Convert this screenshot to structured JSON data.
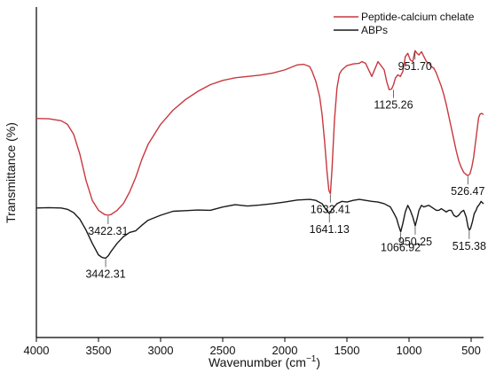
{
  "chart_data": {
    "type": "line",
    "title": "",
    "xlabel": "Wavenumber (cm",
    "xlabel_sup": "−1",
    "xlabel_close": ")",
    "ylabel": "Transmittance (%)",
    "xlim": [
      4000,
      400
    ],
    "xreversed": true,
    "ylim": [
      0,
      100
    ],
    "y_ticks_shown": false,
    "x_ticks": [
      4000,
      3500,
      3000,
      2500,
      2000,
      1500,
      1000,
      500
    ],
    "x_tick_labels": [
      "4000",
      "3500",
      "3000",
      "2500",
      "2000",
      "1500",
      "1000",
      "500"
    ],
    "grid": false,
    "legend_position": "top-right",
    "series": [
      {
        "name": "Peptide-calcium chelate",
        "color": "#c8383f",
        "x": [
          4000,
          3900,
          3800,
          3750,
          3700,
          3650,
          3600,
          3550,
          3500,
          3450,
          3422,
          3400,
          3350,
          3300,
          3250,
          3200,
          3150,
          3100,
          3000,
          2900,
          2800,
          2700,
          2600,
          2500,
          2400,
          2300,
          2200,
          2100,
          2000,
          1900,
          1850,
          1800,
          1780,
          1750,
          1720,
          1700,
          1680,
          1660,
          1645,
          1633,
          1620,
          1600,
          1580,
          1560,
          1540,
          1500,
          1450,
          1400,
          1380,
          1350,
          1300,
          1250,
          1200,
          1180,
          1160,
          1140,
          1125,
          1110,
          1090,
          1070,
          1050,
          1030,
          1010,
          990,
          970,
          952,
          935,
          920,
          900,
          880,
          860,
          840,
          820,
          800,
          780,
          760,
          740,
          720,
          700,
          680,
          660,
          640,
          620,
          600,
          580,
          560,
          540,
          526,
          510,
          495,
          480,
          465,
          450,
          440,
          430,
          420,
          410,
          400
        ],
        "y": [
          66.3,
          66.2,
          65.6,
          64.5,
          61.5,
          55.5,
          47.5,
          41.5,
          38.5,
          37.2,
          37.0,
          37.2,
          38.5,
          40.5,
          44.0,
          48.5,
          54.0,
          58.5,
          64.5,
          68.8,
          72.0,
          74.5,
          76.5,
          77.8,
          78.6,
          79.0,
          79.4,
          80.0,
          81.0,
          82.5,
          82.7,
          82.0,
          80.5,
          77.5,
          73.0,
          67.5,
          59.5,
          50.0,
          44.5,
          43.5,
          51.0,
          66.0,
          75.5,
          79.8,
          81.0,
          82.3,
          82.8,
          83.0,
          83.5,
          83.0,
          79.0,
          83.5,
          81.0,
          77.5,
          75.0,
          75.2,
          76.5,
          78.5,
          79.5,
          79.0,
          80.5,
          85.0,
          86.0,
          84.0,
          83.5,
          86.8,
          86.0,
          85.5,
          86.5,
          85.0,
          83.5,
          83.0,
          82.0,
          81.5,
          80.0,
          78.0,
          76.0,
          73.5,
          70.5,
          67.0,
          63.5,
          60.0,
          56.5,
          53.5,
          51.5,
          50.0,
          49.3,
          49.0,
          49.5,
          51.5,
          54.5,
          59.0,
          63.5,
          66.5,
          67.5,
          67.8,
          67.7,
          67.5
        ],
        "peaks": [
          {
            "label": "3422.31",
            "x": 3422.31,
            "y": 37.0
          },
          {
            "label": "1633.41",
            "x": 1633.41,
            "y": 43.5
          },
          {
            "label": "1125.26",
            "x": 1125.26,
            "y": 75.2
          },
          {
            "label": "951.70",
            "x": 951.7,
            "y": 86.8
          },
          {
            "label": "526.47",
            "x": 526.47,
            "y": 49.0
          }
        ]
      },
      {
        "name": "ABPs",
        "color": "#1a1a1a",
        "x": [
          4000,
          3900,
          3800,
          3750,
          3700,
          3650,
          3600,
          3550,
          3500,
          3470,
          3442,
          3420,
          3400,
          3350,
          3300,
          3250,
          3200,
          3150,
          3100,
          3000,
          2900,
          2800,
          2700,
          2600,
          2500,
          2400,
          2300,
          2200,
          2100,
          2000,
          1900,
          1800,
          1750,
          1700,
          1670,
          1641,
          1620,
          1580,
          1540,
          1500,
          1450,
          1400,
          1350,
          1300,
          1250,
          1200,
          1150,
          1120,
          1100,
          1085,
          1067,
          1050,
          1030,
          1010,
          990,
          970,
          950,
          935,
          920,
          900,
          880,
          860,
          840,
          820,
          800,
          780,
          760,
          740,
          720,
          700,
          680,
          660,
          640,
          620,
          600,
          580,
          560,
          540,
          525,
          515,
          505,
          490,
          475,
          460,
          450,
          440,
          430,
          420,
          410,
          400
        ],
        "y": [
          39.2,
          39.3,
          39.2,
          38.8,
          37.8,
          35.8,
          32.5,
          28.5,
          25.0,
          24.2,
          24.0,
          24.8,
          26.0,
          28.5,
          30.5,
          31.8,
          32.3,
          34.0,
          35.5,
          37.0,
          38.2,
          38.4,
          38.6,
          38.5,
          39.5,
          40.2,
          39.8,
          40.1,
          40.5,
          41.0,
          41.6,
          41.8,
          41.5,
          40.5,
          38.8,
          37.5,
          38.8,
          40.5,
          41.2,
          41.0,
          41.5,
          41.8,
          41.5,
          41.2,
          41.0,
          40.5,
          39.5,
          37.5,
          36.0,
          34.0,
          32.0,
          34.5,
          38.0,
          40.0,
          38.5,
          36.5,
          33.8,
          36.0,
          38.5,
          40.0,
          39.5,
          39.8,
          40.0,
          39.5,
          39.0,
          38.5,
          38.5,
          39.0,
          38.5,
          38.0,
          38.5,
          38.5,
          37.0,
          36.5,
          37.0,
          38.0,
          38.5,
          36.5,
          33.5,
          32.5,
          33.0,
          35.0,
          37.5,
          38.5,
          39.5,
          40.0,
          40.5,
          41.2,
          40.8,
          40.5
        ],
        "peaks": [
          {
            "label": "3442.31",
            "x": 3442.31,
            "y": 24.0
          },
          {
            "label": "1641.13",
            "x": 1641.13,
            "y": 37.5
          },
          {
            "label": "1066.92",
            "x": 1066.92,
            "y": 32.0
          },
          {
            "label": "950.25",
            "x": 950.25,
            "y": 33.8
          },
          {
            "label": "515.38",
            "x": 515.38,
            "y": 32.5
          }
        ]
      }
    ]
  }
}
